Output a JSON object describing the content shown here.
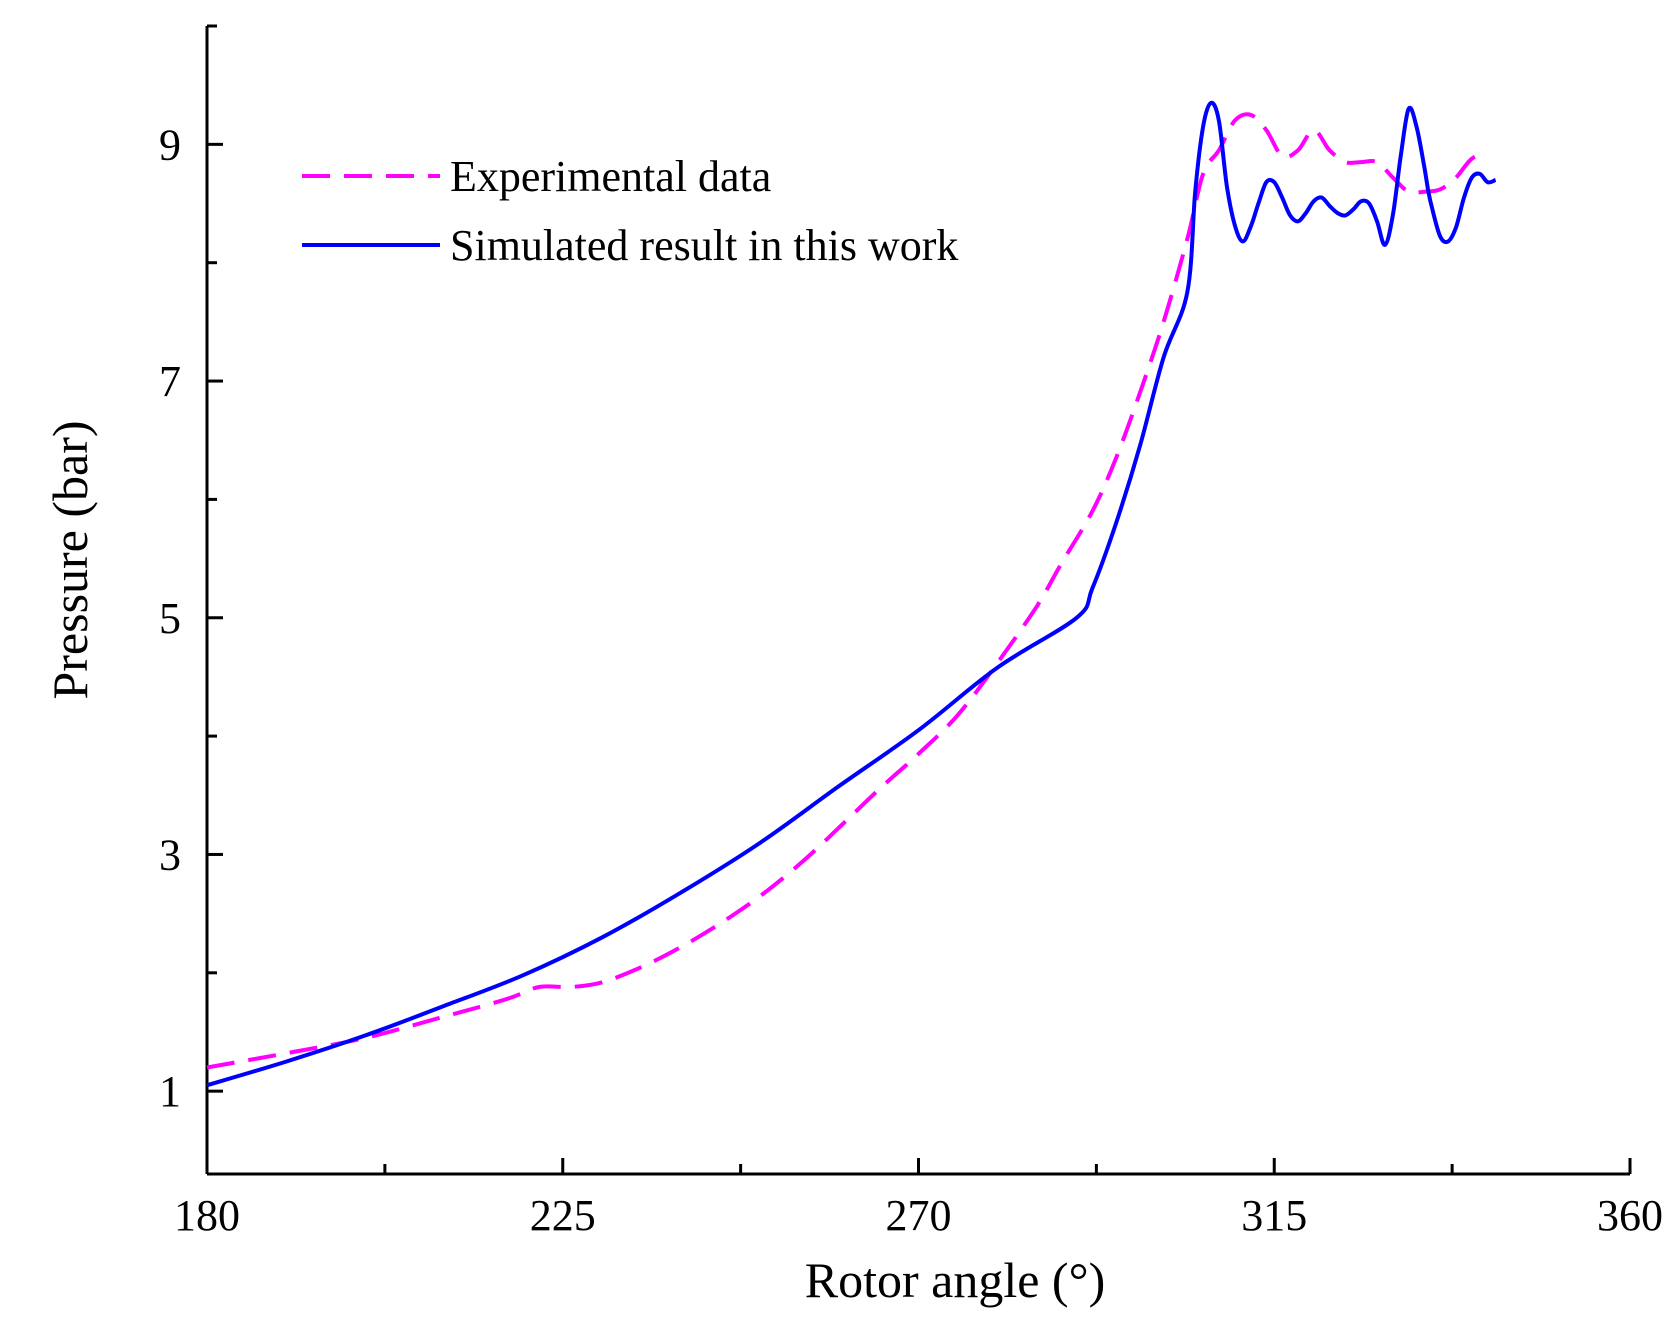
{
  "chart_data": {
    "type": "line",
    "title": "",
    "xlabel": "Rotor angle (°)",
    "ylabel": "Pressure (bar)",
    "xlim": [
      180,
      360
    ],
    "ylim": [
      0.3,
      10
    ],
    "x_ticks": [
      180,
      225,
      270,
      315,
      360
    ],
    "x_tick_labels": [
      "180",
      "225",
      "270",
      "315",
      "360"
    ],
    "x_minor_ticks": [
      202.5,
      247.5,
      292.5,
      337.5
    ],
    "y_ticks": [
      1,
      3,
      5,
      7,
      9
    ],
    "y_tick_labels": [
      "1",
      "3",
      "5",
      "7",
      "9"
    ],
    "y_minor_ticks": [
      2,
      4,
      6,
      8,
      10
    ],
    "legend_position": "top-left",
    "series": [
      {
        "name": "Experimental data",
        "color": "#ff00ff",
        "style": "dashed",
        "x": [
          180,
          190,
          200,
          210,
          218,
          222,
          226,
          230,
          235,
          240,
          245,
          250,
          255,
          260,
          265,
          270,
          275,
          280,
          285,
          288,
          292,
          295,
          298,
          301,
          304,
          306,
          308,
          310,
          312,
          314,
          316,
          318,
          320,
          322,
          324,
          326,
          328,
          330,
          332,
          334,
          336,
          338,
          340,
          342
        ],
        "y": [
          1.2,
          1.32,
          1.45,
          1.63,
          1.78,
          1.88,
          1.88,
          1.92,
          2.05,
          2.22,
          2.42,
          2.65,
          2.92,
          3.23,
          3.55,
          3.85,
          4.18,
          4.62,
          5.1,
          5.45,
          5.9,
          6.35,
          6.9,
          7.5,
          8.2,
          8.75,
          8.95,
          9.2,
          9.25,
          9.12,
          8.9,
          8.95,
          9.12,
          8.95,
          8.85,
          8.85,
          8.85,
          8.72,
          8.6,
          8.6,
          8.62,
          8.72,
          8.88,
          8.92
        ]
      },
      {
        "name": "Simulated result in this work",
        "color": "#0000ff",
        "style": "solid",
        "x": [
          180,
          190,
          200,
          210,
          220,
          230,
          240,
          250,
          260,
          270,
          280,
          290,
          292,
          295,
          298,
          301,
          304,
          305,
          306,
          307,
          308,
          309,
          310,
          311,
          312,
          313,
          314,
          315,
          316,
          317,
          318,
          319,
          320,
          321,
          322,
          323,
          324,
          325,
          326,
          327,
          328,
          329,
          330,
          331,
          332,
          333,
          334,
          334.5,
          335,
          336,
          337,
          338,
          339,
          340,
          341,
          342,
          343
        ],
        "y": [
          1.05,
          1.25,
          1.47,
          1.72,
          1.98,
          2.3,
          2.68,
          3.1,
          3.58,
          4.05,
          4.58,
          5.0,
          5.25,
          5.8,
          6.45,
          7.2,
          7.75,
          8.6,
          9.15,
          9.35,
          9.2,
          8.65,
          8.32,
          8.18,
          8.3,
          8.5,
          8.68,
          8.68,
          8.55,
          8.4,
          8.35,
          8.42,
          8.52,
          8.55,
          8.48,
          8.42,
          8.4,
          8.45,
          8.52,
          8.5,
          8.35,
          8.15,
          8.4,
          8.9,
          9.3,
          9.15,
          8.8,
          8.6,
          8.45,
          8.22,
          8.18,
          8.3,
          8.55,
          8.72,
          8.75,
          8.68,
          8.7
        ]
      }
    ]
  }
}
